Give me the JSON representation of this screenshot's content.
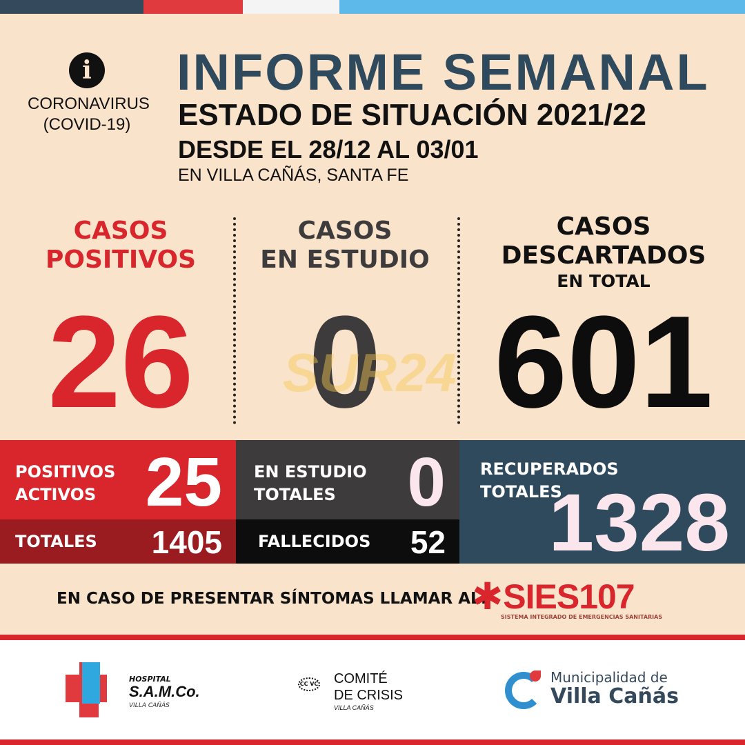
{
  "colors": {
    "background": "#f9e3cb",
    "red": "#d9252c",
    "dark_red": "#9a1b20",
    "slate": "#2e4a5c",
    "gray": "#3d3b3c",
    "black": "#0d0d0d"
  },
  "header": {
    "info_icon": "info-icon",
    "badge_line1": "CORONAVIRUS",
    "badge_line2": "(COVID-19)",
    "title": "INFORME SEMANAL",
    "subtitle": "ESTADO DE SITUACIÓN 2021/22",
    "dates": "DESDE EL 28/12 AL 03/01",
    "location": "EN VILLA CAÑÁS, SANTA FE"
  },
  "stats": [
    {
      "line1": "CASOS",
      "line2": "POSITIVOS",
      "value": "26"
    },
    {
      "line1": "CASOS",
      "line2": "EN ESTUDIO",
      "value": "0"
    },
    {
      "line1": "CASOS",
      "line2": "DESCARTADOS",
      "line3": "EN TOTAL",
      "value": "601"
    }
  ],
  "panels": {
    "positivos_activos": {
      "line1": "POSITIVOS",
      "line2": "ACTIVOS",
      "value": "25"
    },
    "totales": {
      "label": "TOTALES",
      "value": "1405"
    },
    "en_estudio_totales": {
      "line1": "EN ESTUDIO",
      "line2": "TOTALES",
      "value": "0"
    },
    "fallecidos": {
      "label": "FALLECIDOS",
      "value": "52"
    },
    "recuperados": {
      "line1": "RECUPERADOS",
      "line2": "TOTALES",
      "value": "1328"
    }
  },
  "call": {
    "text": "EN CASO DE PRESENTAR SÍNTOMAS LLAMAR AL:",
    "logo": "SIES107",
    "logo_sub": "SISTEMA INTEGRADO DE EMERGENCIAS SANITARIAS"
  },
  "watermark": "SUR24",
  "footer": {
    "hospital": {
      "line1": "HOSPITAL",
      "line2": "S.A.M.Co.",
      "line3": "VILLA CAÑÁS"
    },
    "comite": {
      "line1": "COMITÉ",
      "line2": "DE CRISIS",
      "line3": "VILLA CAÑÁS",
      "mark": "CC VC"
    },
    "municipalidad": {
      "line1": "Municipalidad de",
      "line2": "Villa Cañás"
    }
  }
}
